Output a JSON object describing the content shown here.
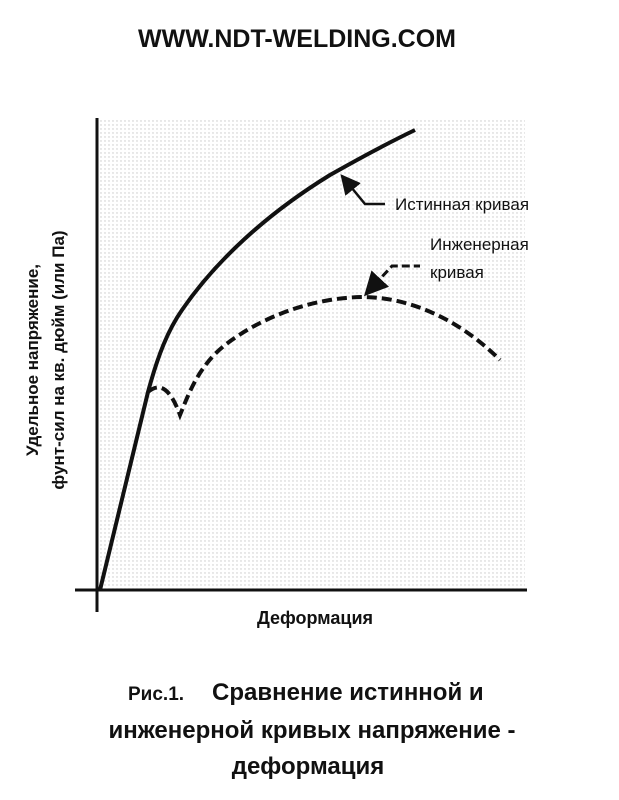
{
  "header": {
    "title": "WWW.NDT-WELDING.COM"
  },
  "axes": {
    "y_label_lines": [
      "Удельное напряжение,",
      "фунт-сил на кв. дюйм (или Па)"
    ],
    "x_label": "Деформация"
  },
  "curves": {
    "true_curve": "Истинная кривая",
    "engineering_curve_lines": [
      "Инженерная",
      "кривая"
    ]
  },
  "caption": {
    "label": "Рис.1.",
    "lines": [
      "Сравнение истинной и",
      "инженерной кривых напряжение -",
      "деформация"
    ]
  }
}
